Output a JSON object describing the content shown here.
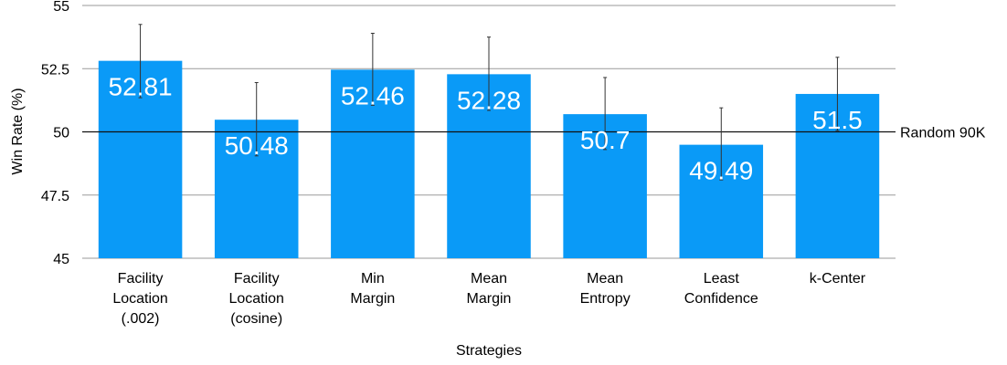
{
  "chart_data": {
    "type": "bar",
    "xlabel": "Strategies",
    "ylabel": "Win Rate (%)",
    "ylim": [
      45,
      55
    ],
    "yticks": [
      "45",
      "47.5",
      "50",
      "52.5",
      "55"
    ],
    "ytick_values": [
      45,
      47.5,
      50,
      52.5,
      55
    ],
    "categories": [
      [
        "Facility",
        "Location",
        "(.002)"
      ],
      [
        "Facility",
        "Location",
        "(cosine)"
      ],
      [
        "Min",
        "Margin"
      ],
      [
        "Mean",
        "Margin"
      ],
      [
        "Mean",
        "Entropy"
      ],
      [
        "Least",
        "Confidence"
      ],
      [
        "k-Center"
      ]
    ],
    "values": [
      52.81,
      50.48,
      52.46,
      52.28,
      50.7,
      49.49,
      51.5
    ],
    "value_labels": [
      "52.81",
      "50.48",
      "52.46",
      "52.28",
      "50.7",
      "49.49",
      "51.5"
    ],
    "error_low": [
      51.35,
      49.05,
      51.05,
      50.85,
      49.3,
      48.1,
      50.05
    ],
    "error_high": [
      54.25,
      51.95,
      53.9,
      53.75,
      52.15,
      50.95,
      52.95
    ],
    "reference_line": {
      "value": 50,
      "label": "Random 90K"
    },
    "bar_color": "#0a9af7",
    "grid": true
  }
}
